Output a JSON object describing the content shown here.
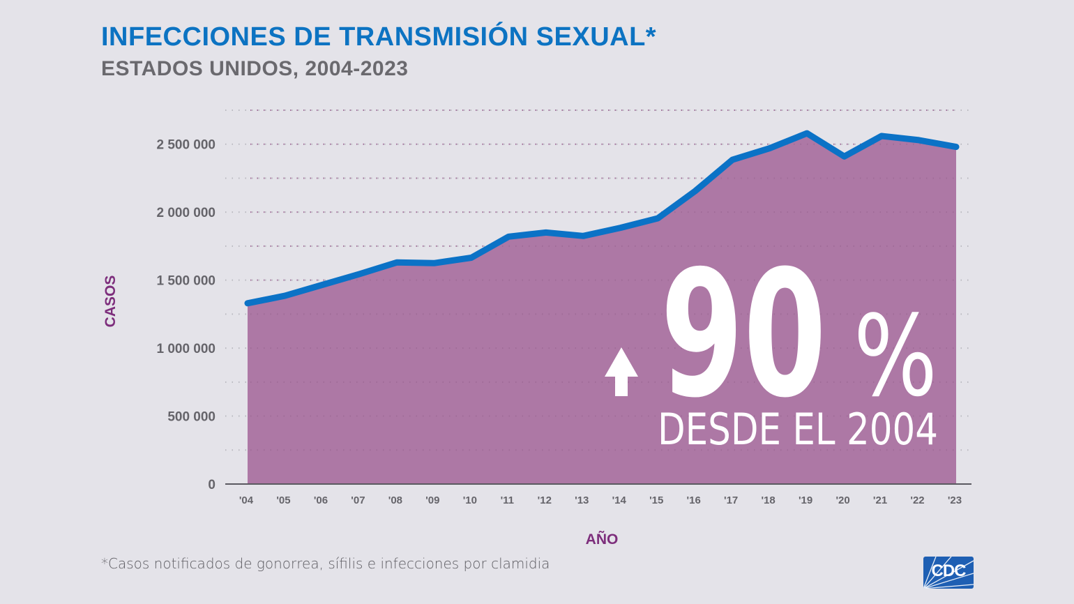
{
  "header": {
    "title": "INFECCIONES DE TRANSMISIÓN SEXUAL*",
    "subtitle": "ESTADOS UNIDOS, 2004-2023"
  },
  "chart_data": {
    "type": "area",
    "title": "INFECCIONES DE TRANSMISIÓN SEXUAL*",
    "subtitle": "ESTADOS UNIDOS, 2004-2023",
    "xlabel": "AÑO",
    "ylabel": "CASOS",
    "x": [
      "'04",
      "'05",
      "'06",
      "'07",
      "'08",
      "'09",
      "'10",
      "'11",
      "'12",
      "'13",
      "'14",
      "'15",
      "'16",
      "'17",
      "'18",
      "'19",
      "'20",
      "'21",
      "'22",
      "'23"
    ],
    "series": [
      {
        "name": "Casos notificados",
        "values": [
          1330000,
          1385000,
          1465000,
          1545000,
          1630000,
          1625000,
          1665000,
          1820000,
          1850000,
          1825000,
          1885000,
          1955000,
          2155000,
          2385000,
          2470000,
          2580000,
          2410000,
          2560000,
          2530000,
          2480000
        ]
      }
    ],
    "yticks": [
      0,
      500000,
      1000000,
      1500000,
      2000000,
      2500000
    ],
    "ytick_labels": [
      "0",
      "500 000",
      "1 000 000",
      "1 500 000",
      "2 000 000",
      "2 500 000"
    ],
    "ylim": [
      0,
      2750000
    ],
    "grid": true,
    "colors": {
      "fill": "#ad78a5",
      "line": "#0b72c6",
      "grid": "#b9b8bf",
      "axis_label": "#7d2e7c"
    },
    "annotation": {
      "arrow": "up-arrow",
      "value": "90",
      "unit": "%",
      "text": "DESDE EL 2004"
    }
  },
  "footnote": "*Casos notificados de gonorrea, sífilis e infecciones por clamidia",
  "logo": {
    "text": "CDC"
  }
}
